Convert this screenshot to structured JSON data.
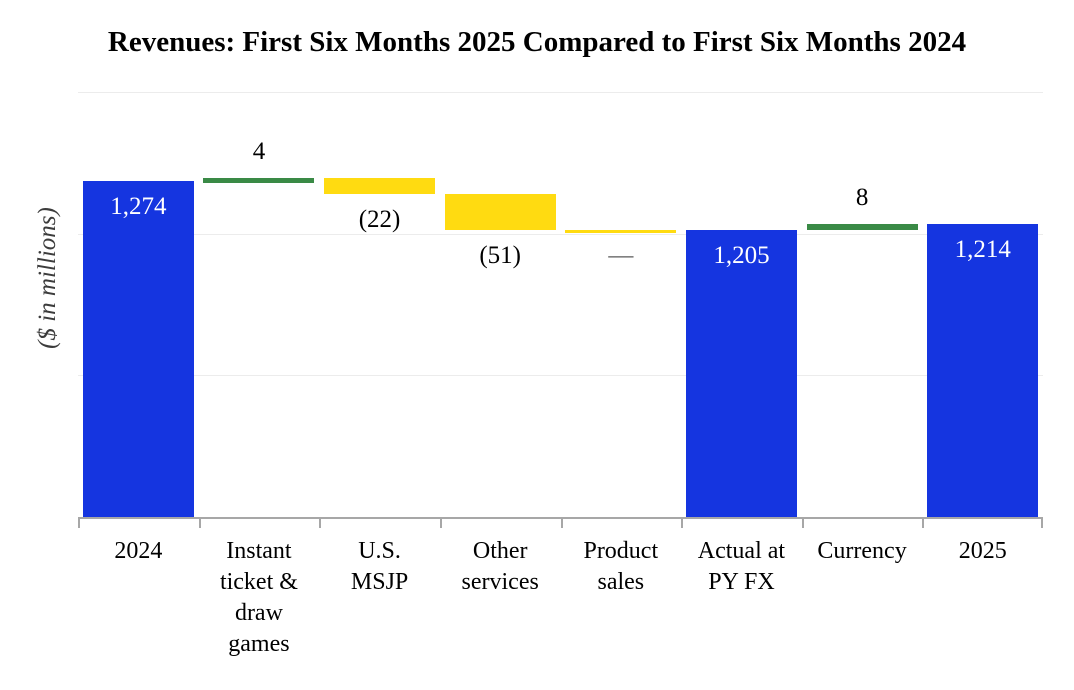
{
  "title": "Revenues: First Six Months 2025 Compared to First Six Months 2024",
  "y_axis_title": "($ in millions)",
  "colors": {
    "total_bar": "#1535e0",
    "increase_bar": "#3a8a46",
    "decrease_bar": "#ffdb11",
    "zero_bar": "#ffdb11",
    "axis": "#a7a7a7",
    "gridline": "#ececec",
    "inside_label": "#ffffff",
    "outside_label": "#000000",
    "dash_label": "#595959",
    "title_text": "#000000",
    "axis_title_text": "#3c3c3c"
  },
  "chart_data": {
    "type": "bar",
    "subtype": "waterfall",
    "title": "Revenues: First Six Months 2025 Compared to First Six Months 2024",
    "xlabel": "",
    "ylabel": "($ in millions)",
    "ylim": [
      800,
      1400
    ],
    "gridlines_y": [
      1400,
      1200,
      1000
    ],
    "grid": true,
    "y_tick_labels": "hidden",
    "legend": "none",
    "categories": [
      "2024",
      "Instant ticket & draw games",
      "U.S. MSJP",
      "Other services",
      "Product sales",
      "Actual at PY FX",
      "Currency",
      "2025"
    ],
    "category_label_lines": [
      [
        "2024"
      ],
      [
        "Instant",
        "ticket &",
        "draw",
        "games"
      ],
      [
        "U.S.",
        "MSJP"
      ],
      [
        "Other",
        "services"
      ],
      [
        "Product",
        "sales"
      ],
      [
        "Actual at",
        "PY FX"
      ],
      [
        "Currency"
      ],
      [
        "2025"
      ]
    ],
    "bars": [
      {
        "category": "2024",
        "kind": "total",
        "value": 1274,
        "from": 800,
        "to": 1274,
        "label": "1,274",
        "label_position": "inside-top"
      },
      {
        "category": "Instant ticket & draw games",
        "kind": "increase",
        "value": 4,
        "from": 1274,
        "to": 1278,
        "label": "4",
        "label_position": "above"
      },
      {
        "category": "U.S. MSJP",
        "kind": "decrease",
        "value": -22,
        "from": 1256,
        "to": 1278,
        "label": "(22)",
        "label_position": "below"
      },
      {
        "category": "Other services",
        "kind": "decrease",
        "value": -51,
        "from": 1205,
        "to": 1256,
        "label": "(51)",
        "label_position": "below"
      },
      {
        "category": "Product sales",
        "kind": "zero",
        "value": 0,
        "from": 1205,
        "to": 1205,
        "label": "—",
        "label_position": "below"
      },
      {
        "category": "Actual at PY FX",
        "kind": "total",
        "value": 1205,
        "from": 800,
        "to": 1205,
        "label": "1,205",
        "label_position": "inside-top"
      },
      {
        "category": "Currency",
        "kind": "increase",
        "value": 8,
        "from": 1205,
        "to": 1213,
        "label": "8",
        "label_position": "above"
      },
      {
        "category": "2025",
        "kind": "total",
        "value": 1214,
        "from": 800,
        "to": 1214,
        "label": "1,214",
        "label_position": "inside-top"
      }
    ]
  }
}
